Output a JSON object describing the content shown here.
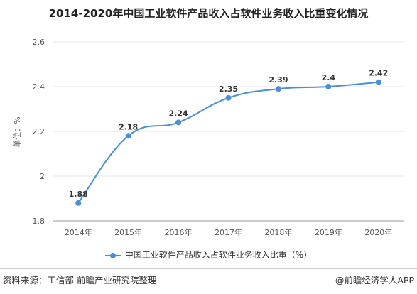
{
  "title": "2014-2020年中国工业软件产品收入占软件业务收入比重变化情况",
  "legend_label": "中国工业软件产品收入占软件业务收入比重（%）",
  "source": "资料来源：工信部 前瞻产业研究院整理",
  "brand": "@前瞻经济学人APP",
  "chart_data": {
    "type": "line",
    "title": "2014-2020年中国工业软件产品收入占软件业务收入比重变化情况",
    "ylabel": "单位：%",
    "xlabel": "",
    "categories": [
      "2014年",
      "2015年",
      "2016年",
      "2017年",
      "2018年",
      "2019年",
      "2020年"
    ],
    "ylim": [
      1.8,
      2.6
    ],
    "yticks": [
      1.8,
      2,
      2.2,
      2.4,
      2.6
    ],
    "ytick_labels": [
      "1.8",
      "2",
      "2.2",
      "2.4",
      "2.6"
    ],
    "series": [
      {
        "name": "中国工业软件产品收入占软件业务收入比重（%）",
        "values": [
          1.88,
          2.18,
          2.24,
          2.35,
          2.39,
          2.4,
          2.42
        ],
        "value_labels": [
          "1.88",
          "2.18",
          "2.24",
          "2.35",
          "2.39",
          "2.4",
          "2.42"
        ],
        "color": "#4a90d9"
      }
    ],
    "grid": true,
    "legend_position": "bottom"
  }
}
